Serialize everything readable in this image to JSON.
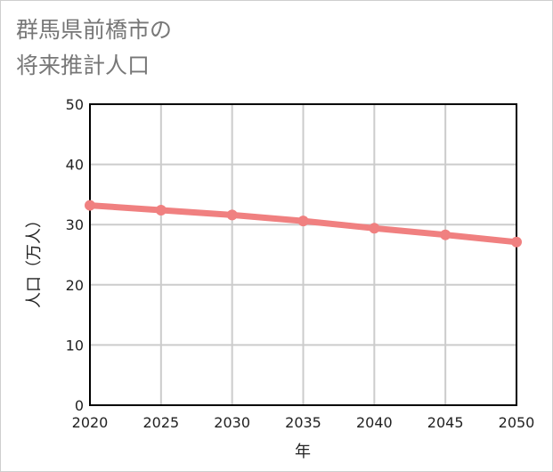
{
  "title_lines": [
    "群馬県前橋市の",
    "将来推計人口"
  ],
  "chart_data": {
    "type": "line",
    "title": "群馬県前橋市の将来推計人口",
    "xlabel": "年",
    "ylabel": "人口（万人）",
    "x": [
      2020,
      2025,
      2030,
      2035,
      2040,
      2045,
      2050
    ],
    "series": [
      {
        "name": "人口",
        "values": [
          33.2,
          32.4,
          31.6,
          30.6,
          29.4,
          28.3,
          27.1
        ]
      }
    ],
    "ylim": [
      0,
      50
    ],
    "yticks": [
      0,
      10,
      20,
      30,
      40,
      50
    ],
    "xticks": [
      2020,
      2025,
      2030,
      2035,
      2040,
      2045,
      2050
    ],
    "grid": true,
    "line_color": "#f08080",
    "grid_color": "#cccccc"
  }
}
